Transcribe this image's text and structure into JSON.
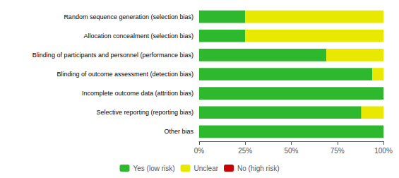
{
  "chart_data": {
    "type": "bar",
    "orientation": "horizontal",
    "stacked": true,
    "categories": [
      "Random sequence generation (selection bias)",
      "Allocation concealment (selection bias)",
      "Blinding of participants and personnel (performance bias)",
      "Blinding of outcome assessment (detection bias)",
      "Incomplete outcome data (attrition bias)",
      "Selective reporting (reporting bias)",
      "Other bias"
    ],
    "series": [
      {
        "name": "Yes (low risk)",
        "color": "#2db82d",
        "values": [
          25,
          25,
          69,
          94,
          100,
          88,
          100
        ]
      },
      {
        "name": "Unclear",
        "color": "#e8e800",
        "values": [
          75,
          75,
          31,
          6,
          0,
          12,
          0
        ]
      },
      {
        "name": "No (high risk)",
        "color": "#cc0000",
        "values": [
          0,
          0,
          0,
          0,
          0,
          0,
          0
        ]
      }
    ],
    "xlim": [
      0,
      100
    ],
    "xticks": [
      {
        "value": 0,
        "label": "0%"
      },
      {
        "value": 25,
        "label": "25%"
      },
      {
        "value": 50,
        "label": "50%"
      },
      {
        "value": 75,
        "label": "75%"
      },
      {
        "value": 100,
        "label": "100%"
      }
    ],
    "grid": false,
    "legend": "bottom"
  }
}
